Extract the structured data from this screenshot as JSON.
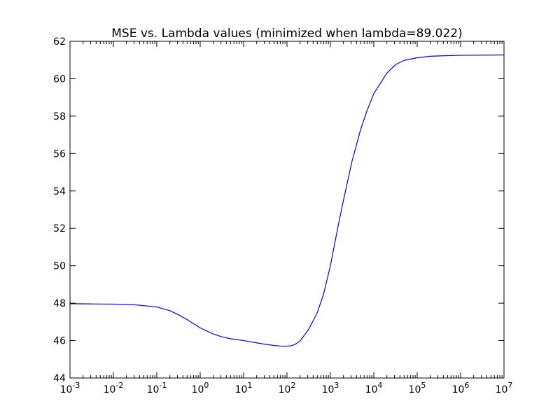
{
  "chart_data": {
    "type": "line",
    "title": "MSE vs. Lambda values (minimized when lambda=89.022)",
    "xlabel": "",
    "ylabel": "",
    "xscale": "log",
    "xlim": [
      0.001,
      10000000
    ],
    "ylim": [
      44,
      62
    ],
    "grid": false,
    "legend": "none",
    "x_ticks": [
      {
        "value": 0.001,
        "base": "10",
        "exp": "-3"
      },
      {
        "value": 0.01,
        "base": "10",
        "exp": "-2"
      },
      {
        "value": 0.1,
        "base": "10",
        "exp": "-1"
      },
      {
        "value": 1,
        "base": "10",
        "exp": "0"
      },
      {
        "value": 10,
        "base": "10",
        "exp": "1"
      },
      {
        "value": 100,
        "base": "10",
        "exp": "2"
      },
      {
        "value": 1000,
        "base": "10",
        "exp": "3"
      },
      {
        "value": 10000,
        "base": "10",
        "exp": "4"
      },
      {
        "value": 100000,
        "base": "10",
        "exp": "5"
      },
      {
        "value": 1000000,
        "base": "10",
        "exp": "6"
      },
      {
        "value": 10000000,
        "base": "10",
        "exp": "7"
      }
    ],
    "y_ticks": [
      "44",
      "46",
      "48",
      "50",
      "52",
      "54",
      "56",
      "58",
      "60",
      "62"
    ],
    "series": [
      {
        "color": "#0000ff",
        "x": [
          0.001,
          0.00316,
          0.01,
          0.0316,
          0.1,
          0.2,
          0.316,
          0.5,
          1,
          2,
          3.16,
          5,
          10,
          20,
          31.6,
          50,
          70,
          89.022,
          120,
          150,
          200,
          316,
          500,
          700,
          1000,
          1500,
          2000,
          3160,
          5000,
          7000,
          10000,
          20000,
          31600,
          50000,
          100000,
          200000,
          316000,
          1000000,
          3160000,
          10000000
        ],
        "y": [
          47.97,
          47.96,
          47.95,
          47.91,
          47.8,
          47.6,
          47.38,
          47.12,
          46.68,
          46.35,
          46.2,
          46.1,
          46.0,
          45.88,
          45.8,
          45.74,
          45.71,
          45.7,
          45.72,
          45.78,
          45.98,
          46.6,
          47.5,
          48.5,
          50.0,
          52.1,
          53.5,
          55.6,
          57.3,
          58.3,
          59.2,
          60.3,
          60.75,
          60.98,
          61.12,
          61.2,
          61.22,
          61.25,
          61.26,
          61.27
        ]
      }
    ]
  }
}
